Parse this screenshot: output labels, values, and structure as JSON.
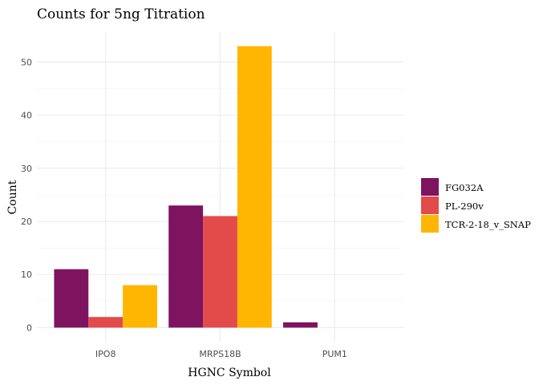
{
  "chart_data": {
    "type": "bar",
    "title": "Counts for 5ng Titration",
    "xlabel": "HGNC Symbol",
    "ylabel": "Count",
    "categories": [
      "IPO8",
      "MRPS18B",
      "PUM1"
    ],
    "series": [
      {
        "name": "FG032A",
        "color": "#7e1360",
        "values": [
          11,
          23,
          1
        ]
      },
      {
        "name": "PL-290v",
        "color": "#e34a4a",
        "values": [
          2,
          21,
          0
        ]
      },
      {
        "name": "TCR-2-18_v_SNAP",
        "color": "#ffb600",
        "values": [
          8,
          53,
          0
        ]
      }
    ],
    "ylim": [
      0,
      53
    ],
    "yticks": [
      0,
      10,
      20,
      30,
      40,
      50
    ],
    "grid": true,
    "legend_position": "right"
  }
}
